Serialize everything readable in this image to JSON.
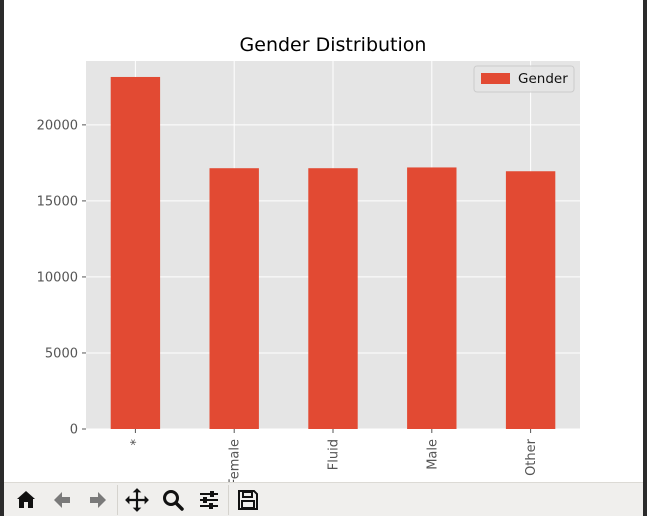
{
  "chart_data": {
    "type": "bar",
    "title": "Gender Distribution",
    "categories": [
      "*",
      "Female",
      "Fluid",
      "Male",
      "Other"
    ],
    "series": [
      {
        "name": "Gender",
        "values": [
          23150,
          17150,
          17150,
          17200,
          16950
        ]
      }
    ],
    "ylim": [
      0,
      24200
    ],
    "yticks": [
      0,
      5000,
      10000,
      15000,
      20000
    ],
    "xticks_rotation": 90,
    "grid": true,
    "legend_position": "top-right",
    "style": "ggplot",
    "colors": {
      "bar": "#e24a33",
      "plot_bg": "#e5e5e5",
      "grid": "#ffffff",
      "tick_text": "#555555",
      "title_text": "#000000"
    }
  },
  "toolbar": {
    "buttons": [
      {
        "name": "home-button",
        "icon": "home-icon"
      },
      {
        "name": "back-button",
        "icon": "arrow-left-icon"
      },
      {
        "name": "forward-button",
        "icon": "arrow-right-icon"
      },
      {
        "name": "pan-button",
        "icon": "move-icon"
      },
      {
        "name": "zoom-button",
        "icon": "magnifier-icon"
      },
      {
        "name": "configure-subplots-button",
        "icon": "sliders-icon"
      },
      {
        "name": "save-button",
        "icon": "floppy-disk-icon"
      }
    ]
  }
}
